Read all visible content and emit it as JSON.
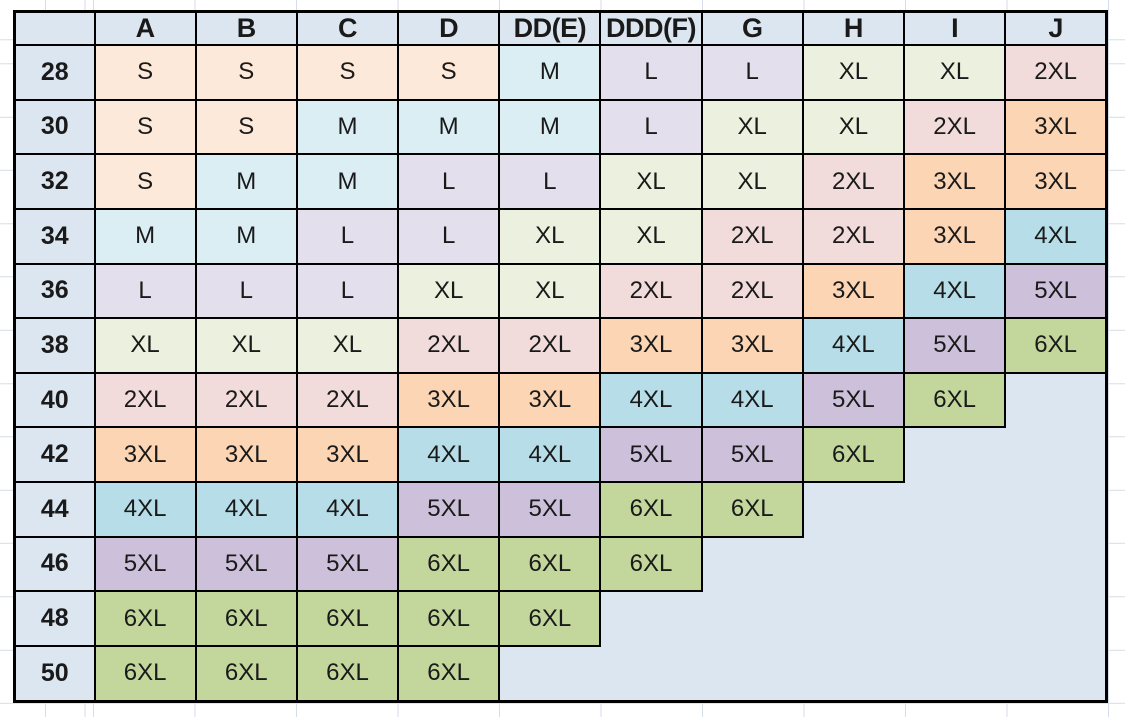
{
  "chart_data": {
    "type": "table",
    "corner_label": "",
    "columns": [
      "A",
      "B",
      "C",
      "D",
      "DD(E)",
      "DDD(F)",
      "G",
      "H",
      "I",
      "J"
    ],
    "row_labels": [
      "28",
      "30",
      "32",
      "34",
      "36",
      "38",
      "40",
      "42",
      "44",
      "46",
      "48",
      "50"
    ],
    "rows": [
      [
        "S",
        "S",
        "S",
        "S",
        "M",
        "L",
        "L",
        "XL",
        "XL",
        "2XL"
      ],
      [
        "S",
        "S",
        "M",
        "M",
        "M",
        "L",
        "XL",
        "XL",
        "2XL",
        "3XL"
      ],
      [
        "S",
        "M",
        "M",
        "L",
        "L",
        "XL",
        "XL",
        "2XL",
        "3XL",
        "3XL"
      ],
      [
        "M",
        "M",
        "L",
        "L",
        "XL",
        "XL",
        "2XL",
        "2XL",
        "3XL",
        "4XL"
      ],
      [
        "L",
        "L",
        "L",
        "XL",
        "XL",
        "2XL",
        "2XL",
        "3XL",
        "4XL",
        "5XL"
      ],
      [
        "XL",
        "XL",
        "XL",
        "2XL",
        "2XL",
        "3XL",
        "3XL",
        "4XL",
        "5XL",
        "6XL"
      ],
      [
        "2XL",
        "2XL",
        "2XL",
        "3XL",
        "3XL",
        "4XL",
        "4XL",
        "5XL",
        "6XL",
        null
      ],
      [
        "3XL",
        "3XL",
        "3XL",
        "4XL",
        "4XL",
        "5XL",
        "5XL",
        "6XL",
        null,
        null
      ],
      [
        "4XL",
        "4XL",
        "4XL",
        "5XL",
        "5XL",
        "6XL",
        "6XL",
        null,
        null,
        null
      ],
      [
        "5XL",
        "5XL",
        "5XL",
        "6XL",
        "6XL",
        "6XL",
        null,
        null,
        null,
        null
      ],
      [
        "6XL",
        "6XL",
        "6XL",
        "6XL",
        "6XL",
        null,
        null,
        null,
        null,
        null
      ],
      [
        "6XL",
        "6XL",
        "6XL",
        "6XL",
        null,
        null,
        null,
        null,
        null,
        null
      ]
    ]
  },
  "style": {
    "header_fill": "#DCE6F1",
    "empty_fill": "#DCE6F1",
    "border_color": "#000000",
    "gridline_color": "#D6DDE8",
    "size_colors": {
      "S": "#FDE9D9",
      "M": "#DAEEF3",
      "L": "#E4DFEC",
      "XL": "#EBF1DE",
      "2XL": "#F2DCDB",
      "3XL": "#FCD5B4",
      "4XL": "#B7DEE8",
      "5XL": "#CCC0DA",
      "6XL": "#C3D69B"
    }
  }
}
